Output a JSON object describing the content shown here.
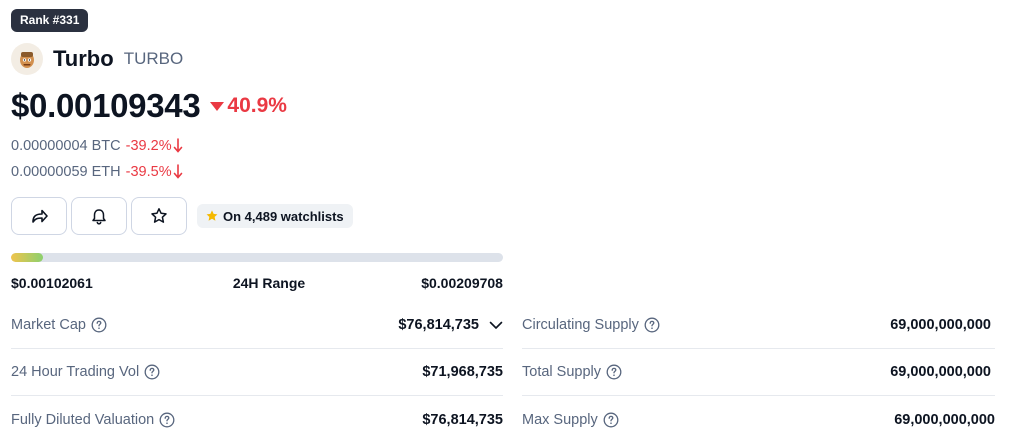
{
  "rank_badge": "Rank #331",
  "coin": {
    "name": "Turbo",
    "symbol": "TURBO",
    "price": "$0.00109343",
    "change_24h": "40.9%",
    "btc_price": "0.00000004 BTC",
    "btc_change": "-39.2%",
    "eth_price": "0.00000059 ETH",
    "eth_change": "-39.5%"
  },
  "actions": {
    "share_icon": "share-icon",
    "alert_icon": "bell-icon",
    "watch_icon": "star-outline-icon",
    "watchlist_text": "On 4,489 watchlists"
  },
  "range": {
    "label": "24H Range",
    "low": "$0.00102061",
    "high": "$0.00209708",
    "position_fraction": 0.065
  },
  "stats_left": [
    {
      "label": "Market Cap",
      "value": "$76,814,735"
    },
    {
      "label": "24 Hour Trading Vol",
      "value": "$71,968,735"
    },
    {
      "label": "Fully Diluted Valuation",
      "value": "$76,814,735"
    }
  ],
  "stats_right": [
    {
      "label": "Circulating Supply",
      "value": "69,000,000,000"
    },
    {
      "label": "Total Supply",
      "value": "69,000,000,000"
    },
    {
      "label": "Max Supply",
      "value": "69,000,000,000"
    }
  ],
  "colors": {
    "negative": "#ea3943",
    "badge_bg": "#2b3140",
    "muted_text": "#58667e",
    "star": "#f5b900"
  }
}
